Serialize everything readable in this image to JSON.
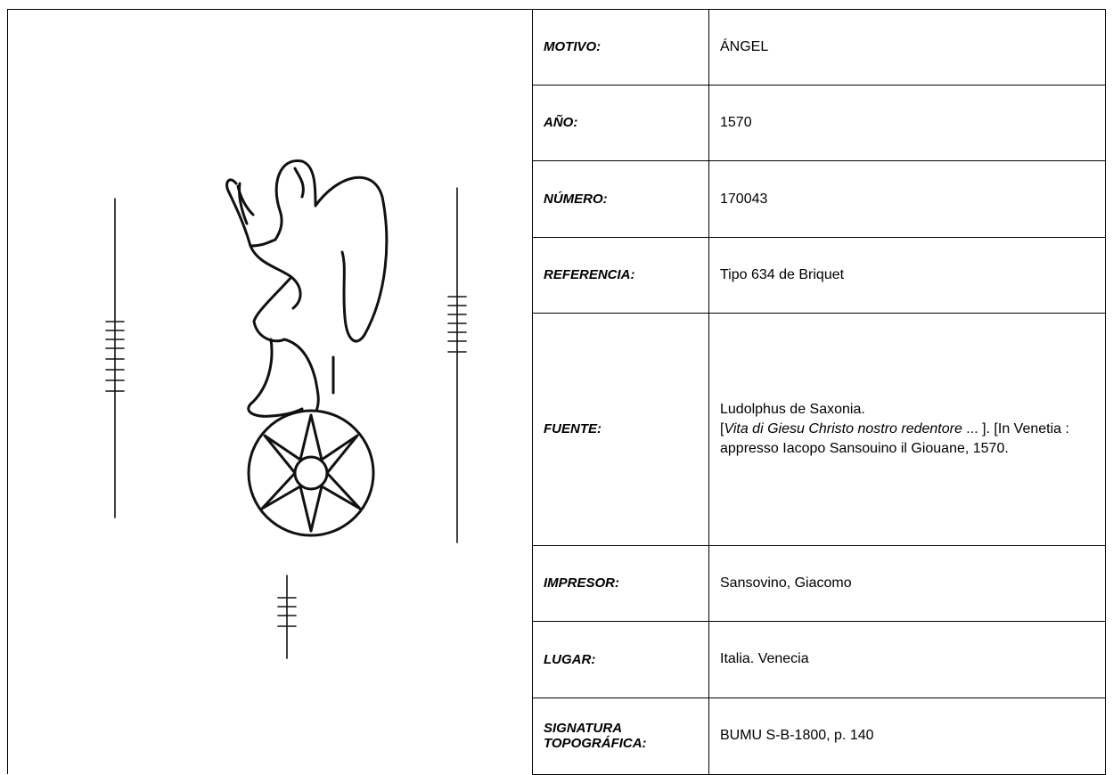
{
  "table": {
    "rows": [
      {
        "label": "MOTIVO:",
        "value": "ÁNGEL"
      },
      {
        "label": "AÑO:",
        "value": "1570"
      },
      {
        "label": "NÚMERO:",
        "value": "170043"
      },
      {
        "label": "REFERENCIA:",
        "value": "Tipo 634 de Briquet"
      },
      {
        "label": "FUENTE:",
        "value": [
          "Ludolphus de Saxonia.",
          "[",
          "Vita di Giesu Christo nostro redentore",
          " ... ]. [In Venetia : appresso Iacopo Sansouino il Giouane, 1570."
        ]
      },
      {
        "label": "IMPRESOR:",
        "value": "Sansovino, Giacomo"
      },
      {
        "label": "LUGAR:",
        "value": "Italia. Venecia"
      },
      {
        "label": "SIGNATURA TOPOGRÁFICA:",
        "value": "BUMU S-B-1800, p. 140"
      }
    ]
  }
}
